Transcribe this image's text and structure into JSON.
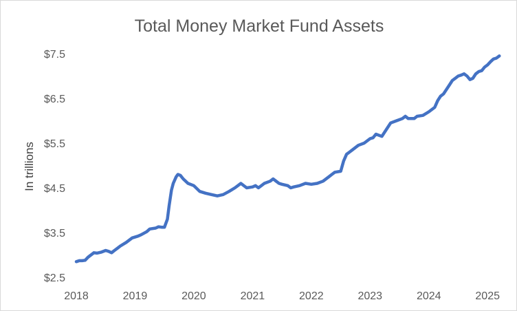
{
  "chart_data": {
    "type": "line",
    "title": "Total Money Market Fund Assets",
    "xlabel": "",
    "ylabel": "In trillions",
    "xlim": [
      2018.0,
      2025.22
    ],
    "ylim": [
      2.5,
      7.5
    ],
    "x_ticks": [
      {
        "value": 2018,
        "label": "2018"
      },
      {
        "value": 2019,
        "label": "2019"
      },
      {
        "value": 2020,
        "label": "2020"
      },
      {
        "value": 2021,
        "label": "2021"
      },
      {
        "value": 2022,
        "label": "2022"
      },
      {
        "value": 2023,
        "label": "2023"
      },
      {
        "value": 2024,
        "label": "2024"
      },
      {
        "value": 2025,
        "label": "2025"
      }
    ],
    "y_ticks": [
      {
        "value": 7.5,
        "label": "$7.5"
      },
      {
        "value": 6.5,
        "label": "$6.5"
      },
      {
        "value": 5.5,
        "label": "$5.5"
      },
      {
        "value": 4.5,
        "label": "$4.5"
      },
      {
        "value": 3.5,
        "label": "$3.5"
      },
      {
        "value": 2.5,
        "label": "$2.5"
      }
    ],
    "grid": false,
    "legend": "none",
    "series": [
      {
        "color": "#4472c4",
        "x": [
          2018.0,
          2018.05,
          2018.1,
          2018.15,
          2018.2,
          2018.3,
          2018.35,
          2018.42,
          2018.5,
          2018.55,
          2018.6,
          2018.65,
          2018.7,
          2018.75,
          2018.85,
          2018.95,
          2019.05,
          2019.1,
          2019.2,
          2019.25,
          2019.35,
          2019.4,
          2019.45,
          2019.5,
          2019.55,
          2019.58,
          2019.62,
          2019.65,
          2019.7,
          2019.73,
          2019.77,
          2019.82,
          2019.9,
          2020.0,
          2020.1,
          2020.2,
          2020.3,
          2020.4,
          2020.5,
          2020.6,
          2020.7,
          2020.75,
          2020.8,
          2020.9,
          2021.0,
          2021.05,
          2021.1,
          2021.2,
          2021.3,
          2021.35,
          2021.4,
          2021.45,
          2021.5,
          2021.6,
          2021.65,
          2021.7,
          2021.8,
          2021.9,
          2022.0,
          2022.1,
          2022.2,
          2022.3,
          2022.35,
          2022.4,
          2022.5,
          2022.55,
          2022.6,
          2022.65,
          2022.7,
          2022.8,
          2022.9,
          2023.0,
          2023.05,
          2023.1,
          2023.2,
          2023.3,
          2023.35,
          2023.45,
          2023.55,
          2023.6,
          2023.65,
          2023.75,
          2023.8,
          2023.9,
          2024.0,
          2024.1,
          2024.15,
          2024.2,
          2024.25,
          2024.3,
          2024.35,
          2024.4,
          2024.45,
          2024.5,
          2024.55,
          2024.6,
          2024.65,
          2024.7,
          2024.75,
          2024.8,
          2024.85,
          2024.9,
          2024.95,
          2025.0,
          2025.05,
          2025.1,
          2025.15,
          2025.2
        ],
        "values": [
          2.85,
          2.87,
          2.87,
          2.88,
          2.95,
          3.05,
          3.04,
          3.06,
          3.1,
          3.08,
          3.05,
          3.1,
          3.15,
          3.2,
          3.28,
          3.38,
          3.42,
          3.45,
          3.52,
          3.58,
          3.6,
          3.63,
          3.62,
          3.62,
          3.8,
          4.1,
          4.45,
          4.6,
          4.75,
          4.8,
          4.78,
          4.7,
          4.6,
          4.55,
          4.42,
          4.38,
          4.35,
          4.32,
          4.35,
          4.42,
          4.5,
          4.55,
          4.6,
          4.5,
          4.52,
          4.55,
          4.5,
          4.6,
          4.65,
          4.7,
          4.65,
          4.6,
          4.58,
          4.55,
          4.5,
          4.52,
          4.55,
          4.6,
          4.58,
          4.6,
          4.65,
          4.75,
          4.8,
          4.85,
          4.87,
          5.1,
          5.25,
          5.3,
          5.35,
          5.45,
          5.5,
          5.6,
          5.62,
          5.7,
          5.65,
          5.85,
          5.95,
          6.0,
          6.05,
          6.1,
          6.05,
          6.05,
          6.1,
          6.12,
          6.2,
          6.3,
          6.45,
          6.55,
          6.6,
          6.7,
          6.8,
          6.9,
          6.95,
          7.0,
          7.02,
          7.05,
          7.0,
          6.92,
          6.95,
          7.05,
          7.1,
          7.12,
          7.2,
          7.25,
          7.32,
          7.38,
          7.4,
          7.45
        ]
      }
    ]
  }
}
